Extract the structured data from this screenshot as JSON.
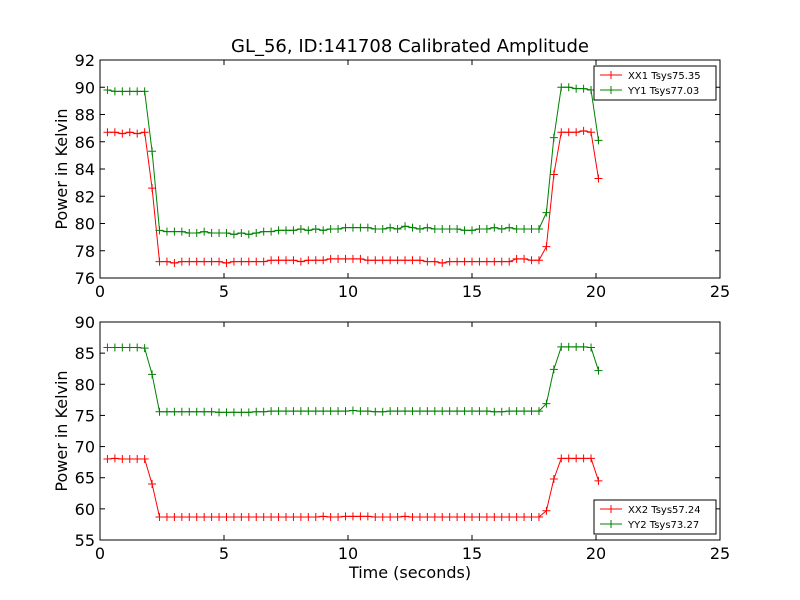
{
  "title": "GL_56, ID:141708 Calibrated Amplitude",
  "colors": {
    "red": "#ff0000",
    "green": "#008000"
  },
  "chart_data": [
    {
      "type": "line",
      "title": "GL_56, ID:141708 Calibrated Amplitude",
      "xlabel": "",
      "ylabel": "Power in Kelvin",
      "xlim": [
        0,
        25
      ],
      "ylim": [
        76,
        92
      ],
      "xticks": [
        0,
        5,
        10,
        15,
        20,
        25
      ],
      "yticks": [
        76,
        78,
        80,
        82,
        84,
        86,
        88,
        90,
        92
      ],
      "grid": false,
      "legend_position": "top-right",
      "series": [
        {
          "name": "XX1 Tsys75.35",
          "color": "#ff0000",
          "x": [
            0.3,
            0.6,
            0.9,
            1.2,
            1.5,
            1.8,
            2.1,
            2.4,
            2.7,
            3.0,
            3.3,
            3.6,
            3.9,
            4.2,
            4.5,
            4.8,
            5.1,
            5.4,
            5.7,
            6.0,
            6.3,
            6.6,
            6.9,
            7.2,
            7.5,
            7.8,
            8.1,
            8.4,
            8.7,
            9.0,
            9.3,
            9.6,
            9.9,
            10.2,
            10.5,
            10.8,
            11.1,
            11.4,
            11.7,
            12.0,
            12.3,
            12.6,
            12.9,
            13.2,
            13.5,
            13.8,
            14.1,
            14.4,
            14.7,
            15.0,
            15.3,
            15.6,
            15.9,
            16.2,
            16.5,
            16.8,
            17.1,
            17.4,
            17.7,
            18.0,
            18.3,
            18.6,
            18.9,
            19.2,
            19.5,
            19.8,
            20.1
          ],
          "y": [
            86.7,
            86.7,
            86.6,
            86.7,
            86.6,
            86.7,
            82.6,
            77.2,
            77.2,
            77.1,
            77.2,
            77.2,
            77.2,
            77.2,
            77.2,
            77.2,
            77.1,
            77.2,
            77.2,
            77.2,
            77.2,
            77.2,
            77.3,
            77.3,
            77.3,
            77.3,
            77.2,
            77.3,
            77.3,
            77.3,
            77.4,
            77.4,
            77.4,
            77.4,
            77.4,
            77.3,
            77.3,
            77.3,
            77.3,
            77.3,
            77.3,
            77.3,
            77.3,
            77.2,
            77.2,
            77.1,
            77.2,
            77.2,
            77.2,
            77.2,
            77.2,
            77.2,
            77.2,
            77.2,
            77.2,
            77.4,
            77.4,
            77.3,
            77.3,
            78.3,
            83.6,
            86.7,
            86.7,
            86.7,
            86.8,
            86.7,
            83.3
          ]
        },
        {
          "name": "YY1 Tsys77.03",
          "color": "#008000",
          "x": [
            0.3,
            0.6,
            0.9,
            1.2,
            1.5,
            1.8,
            2.1,
            2.4,
            2.7,
            3.0,
            3.3,
            3.6,
            3.9,
            4.2,
            4.5,
            4.8,
            5.1,
            5.4,
            5.7,
            6.0,
            6.3,
            6.6,
            6.9,
            7.2,
            7.5,
            7.8,
            8.1,
            8.4,
            8.7,
            9.0,
            9.3,
            9.6,
            9.9,
            10.2,
            10.5,
            10.8,
            11.1,
            11.4,
            11.7,
            12.0,
            12.3,
            12.6,
            12.9,
            13.2,
            13.5,
            13.8,
            14.1,
            14.4,
            14.7,
            15.0,
            15.3,
            15.6,
            15.9,
            16.2,
            16.5,
            16.8,
            17.1,
            17.4,
            17.7,
            18.0,
            18.3,
            18.6,
            18.9,
            19.2,
            19.5,
            19.8,
            20.1
          ],
          "y": [
            89.8,
            89.7,
            89.7,
            89.7,
            89.7,
            89.7,
            85.3,
            79.5,
            79.4,
            79.4,
            79.4,
            79.3,
            79.3,
            79.4,
            79.3,
            79.3,
            79.3,
            79.2,
            79.3,
            79.2,
            79.3,
            79.4,
            79.4,
            79.5,
            79.5,
            79.5,
            79.6,
            79.5,
            79.6,
            79.5,
            79.6,
            79.6,
            79.7,
            79.7,
            79.7,
            79.7,
            79.6,
            79.6,
            79.7,
            79.6,
            79.8,
            79.7,
            79.6,
            79.7,
            79.6,
            79.6,
            79.6,
            79.6,
            79.5,
            79.5,
            79.6,
            79.6,
            79.7,
            79.6,
            79.7,
            79.6,
            79.6,
            79.6,
            79.6,
            80.8,
            86.3,
            90.0,
            90.0,
            89.9,
            89.9,
            89.8,
            86.1
          ]
        }
      ]
    },
    {
      "type": "line",
      "title": "",
      "xlabel": "Time (seconds)",
      "ylabel": "Power in Kelvin",
      "xlim": [
        0,
        25
      ],
      "ylim": [
        55,
        90
      ],
      "xticks": [
        0,
        5,
        10,
        15,
        20,
        25
      ],
      "yticks": [
        55,
        60,
        65,
        70,
        75,
        80,
        85,
        90
      ],
      "grid": false,
      "legend_position": "bottom-right",
      "series": [
        {
          "name": "XX2 Tsys57.24",
          "color": "#ff0000",
          "x": [
            0.3,
            0.6,
            0.9,
            1.2,
            1.5,
            1.8,
            2.1,
            2.4,
            2.7,
            3.0,
            3.3,
            3.6,
            3.9,
            4.2,
            4.5,
            4.8,
            5.1,
            5.4,
            5.7,
            6.0,
            6.3,
            6.6,
            6.9,
            7.2,
            7.5,
            7.8,
            8.1,
            8.4,
            8.7,
            9.0,
            9.3,
            9.6,
            9.9,
            10.2,
            10.5,
            10.8,
            11.1,
            11.4,
            11.7,
            12.0,
            12.3,
            12.6,
            12.9,
            13.2,
            13.5,
            13.8,
            14.1,
            14.4,
            14.7,
            15.0,
            15.3,
            15.6,
            15.9,
            16.2,
            16.5,
            16.8,
            17.1,
            17.4,
            17.7,
            18.0,
            18.3,
            18.6,
            18.9,
            19.2,
            19.5,
            19.8,
            20.1
          ],
          "y": [
            68.0,
            68.1,
            68.0,
            68.0,
            68.0,
            68.0,
            64.0,
            58.7,
            58.7,
            58.7,
            58.7,
            58.7,
            58.7,
            58.7,
            58.7,
            58.7,
            58.7,
            58.7,
            58.7,
            58.7,
            58.7,
            58.7,
            58.7,
            58.7,
            58.7,
            58.7,
            58.7,
            58.7,
            58.7,
            58.8,
            58.7,
            58.7,
            58.8,
            58.8,
            58.8,
            58.8,
            58.7,
            58.7,
            58.7,
            58.7,
            58.8,
            58.7,
            58.7,
            58.7,
            58.7,
            58.7,
            58.7,
            58.7,
            58.7,
            58.7,
            58.7,
            58.7,
            58.7,
            58.7,
            58.7,
            58.7,
            58.7,
            58.7,
            58.7,
            59.7,
            64.8,
            68.1,
            68.1,
            68.1,
            68.1,
            68.1,
            64.5
          ]
        },
        {
          "name": "YY2 Tsys73.27",
          "color": "#008000",
          "x": [
            0.3,
            0.6,
            0.9,
            1.2,
            1.5,
            1.8,
            2.1,
            2.4,
            2.7,
            3.0,
            3.3,
            3.6,
            3.9,
            4.2,
            4.5,
            4.8,
            5.1,
            5.4,
            5.7,
            6.0,
            6.3,
            6.6,
            6.9,
            7.2,
            7.5,
            7.8,
            8.1,
            8.4,
            8.7,
            9.0,
            9.3,
            9.6,
            9.9,
            10.2,
            10.5,
            10.8,
            11.1,
            11.4,
            11.7,
            12.0,
            12.3,
            12.6,
            12.9,
            13.2,
            13.5,
            13.8,
            14.1,
            14.4,
            14.7,
            15.0,
            15.3,
            15.6,
            15.9,
            16.2,
            16.5,
            16.8,
            17.1,
            17.4,
            17.7,
            18.0,
            18.3,
            18.6,
            18.9,
            19.2,
            19.5,
            19.8,
            20.1
          ],
          "y": [
            85.9,
            85.9,
            85.9,
            85.9,
            85.9,
            85.8,
            81.6,
            75.6,
            75.6,
            75.6,
            75.6,
            75.6,
            75.6,
            75.6,
            75.6,
            75.5,
            75.5,
            75.5,
            75.5,
            75.5,
            75.6,
            75.6,
            75.7,
            75.7,
            75.7,
            75.7,
            75.7,
            75.7,
            75.7,
            75.7,
            75.7,
            75.7,
            75.7,
            75.8,
            75.7,
            75.7,
            75.6,
            75.6,
            75.7,
            75.7,
            75.7,
            75.7,
            75.7,
            75.7,
            75.7,
            75.7,
            75.7,
            75.7,
            75.7,
            75.7,
            75.7,
            75.7,
            75.6,
            75.6,
            75.7,
            75.7,
            75.7,
            75.7,
            75.7,
            76.9,
            82.4,
            86.0,
            86.0,
            86.0,
            86.0,
            85.9,
            82.2
          ]
        }
      ]
    }
  ]
}
